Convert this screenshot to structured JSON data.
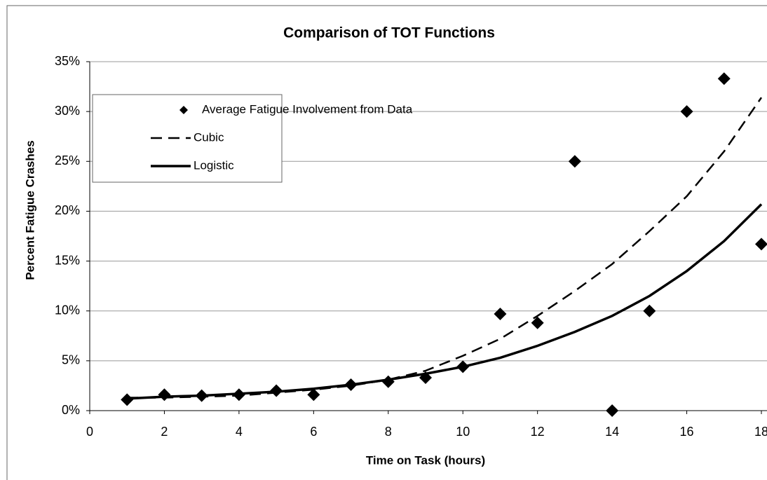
{
  "chart_data": {
    "type": "line",
    "title": "Comparison of TOT Functions",
    "xlabel": "Time on Task (hours)",
    "ylabel": "Percent Fatigue Crashes",
    "x": [
      1,
      2,
      3,
      4,
      5,
      6,
      7,
      8,
      9,
      10,
      11,
      12,
      13,
      14,
      15,
      16,
      17,
      18
    ],
    "series": [
      {
        "name": "Average Fatigue Involvement from Data",
        "color": "#000000",
        "style": "marker",
        "values": [
          1.1,
          1.6,
          1.5,
          1.6,
          2.0,
          1.6,
          2.6,
          2.9,
          3.3,
          4.4,
          9.7,
          8.8,
          25.0,
          0,
          10.0,
          30.0,
          33.3,
          16.7
        ]
      },
      {
        "name": "Cubic",
        "color": "#000000",
        "style": "dashed",
        "values": [
          1.3,
          1.3,
          1.4,
          1.5,
          1.8,
          2.1,
          2.5,
          3.1,
          4.0,
          5.5,
          7.2,
          9.5,
          12.0,
          14.7,
          18.0,
          21.5,
          26.0,
          31.4
        ]
      },
      {
        "name": "Logistic",
        "color": "#000000",
        "style": "solid",
        "values": [
          1.2,
          1.4,
          1.5,
          1.7,
          1.9,
          2.2,
          2.6,
          3.1,
          3.7,
          4.4,
          5.3,
          6.5,
          7.9,
          9.5,
          11.5,
          14.0,
          17.0,
          20.7
        ]
      }
    ],
    "xlim": [
      0,
      18
    ],
    "xticks": [
      0,
      2,
      4,
      6,
      8,
      10,
      12,
      14,
      16,
      18
    ],
    "ylim": [
      0,
      35
    ],
    "yticks": [
      {
        "value": 0,
        "label": "0%"
      },
      {
        "value": 5,
        "label": "5%"
      },
      {
        "value": 10,
        "label": "10%"
      },
      {
        "value": 15,
        "label": "15%"
      },
      {
        "value": 20,
        "label": "20%"
      },
      {
        "value": 25,
        "label": "25%"
      },
      {
        "value": 30,
        "label": "30%"
      },
      {
        "value": 35,
        "label": "35%"
      }
    ],
    "grid": true,
    "legend": "upper left"
  }
}
